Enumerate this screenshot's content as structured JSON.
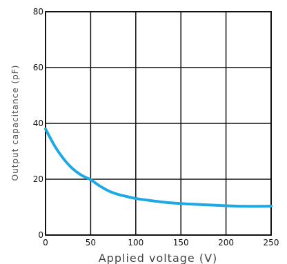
{
  "chart_data": {
    "type": "line",
    "title": "",
    "xlabel": "Applied  voltage  (V)",
    "ylabel": "Output  capacitance  (pF)",
    "xlim": [
      0,
      250
    ],
    "ylim": [
      0,
      80
    ],
    "xticks": [
      0,
      50,
      100,
      150,
      200,
      250
    ],
    "yticks": [
      0,
      20,
      40,
      60,
      80
    ],
    "grid": true,
    "legend": "none",
    "colors": {
      "line": "#1fa9e4",
      "grid": "#111111",
      "frame": "#111111"
    },
    "series": [
      {
        "x": [
          0,
          10,
          20,
          30,
          40,
          50,
          60,
          70,
          80,
          90,
          100,
          120,
          140,
          160,
          180,
          200,
          220,
          240,
          250
        ],
        "values": [
          38,
          32,
          27.3,
          23.8,
          21.4,
          19.8,
          17.6,
          15.8,
          14.6,
          13.8,
          13.1,
          12.2,
          11.5,
          11.1,
          10.8,
          10.5,
          10.3,
          10.3,
          10.4
        ]
      }
    ]
  }
}
